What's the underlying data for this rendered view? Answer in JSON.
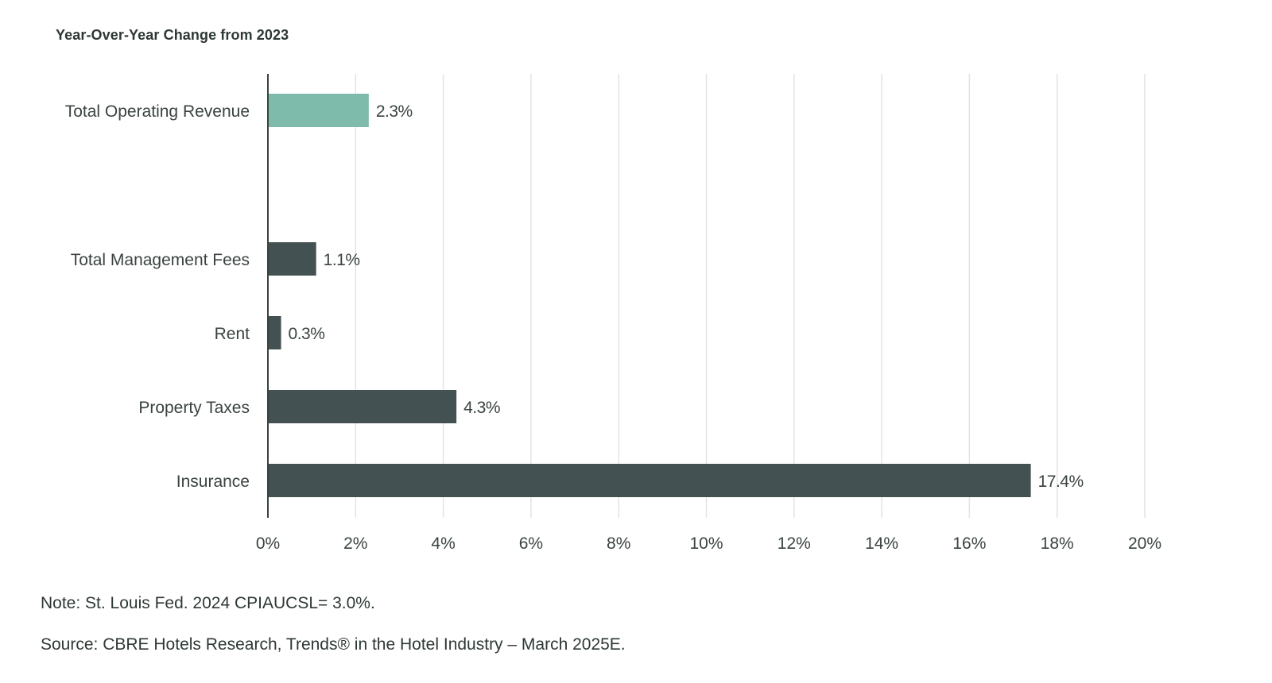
{
  "chart_data": {
    "type": "bar",
    "orientation": "horizontal",
    "title": "Year-Over-Year Change from 2023",
    "categories": [
      "Total Operating Revenue",
      "Total Management Fees",
      "Rent",
      "Property Taxes",
      "Insurance"
    ],
    "values": [
      2.3,
      1.1,
      0.3,
      4.3,
      17.4
    ],
    "value_labels": [
      "2.3%",
      "1.1%",
      "0.3%",
      "4.3%",
      "17.4%"
    ],
    "bar_colors": [
      "#7fbbab",
      "#435152",
      "#435152",
      "#435152",
      "#435152"
    ],
    "xlim": [
      0,
      20
    ],
    "x_ticks": [
      0,
      2,
      4,
      6,
      8,
      10,
      12,
      14,
      16,
      18,
      20
    ],
    "x_tick_labels": [
      "0%",
      "2%",
      "4%",
      "6%",
      "8%",
      "10%",
      "12%",
      "14%",
      "16%",
      "18%",
      "20%"
    ],
    "xlabel": "",
    "ylabel": "",
    "grid": "vertical",
    "gridline_color": "#e2e4e3",
    "axis_color": "#3a4341"
  },
  "footer": {
    "note": "Note: St. Louis Fed. 2024 CPIAUCSL= 3.0%.",
    "source": "Source: CBRE Hotels Research, Trends® in the Hotel Industry – March 2025E."
  }
}
